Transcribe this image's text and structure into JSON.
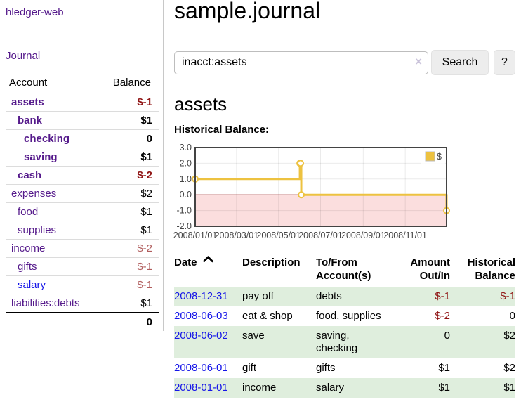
{
  "sidebar": {
    "app_title": "hledger-web",
    "journal_link": "Journal",
    "accounts_header": {
      "account": "Account",
      "balance": "Balance"
    },
    "accounts": [
      {
        "name": "assets",
        "level": 1,
        "bold": true,
        "balance": "$-1",
        "balance_style": "neg-strong",
        "link": "purple"
      },
      {
        "name": "bank",
        "level": 2,
        "bold": true,
        "balance": "$1",
        "balance_style": "pos",
        "link": "purple"
      },
      {
        "name": "checking",
        "level": 3,
        "bold": true,
        "balance": "0",
        "balance_style": "pos",
        "link": "purple"
      },
      {
        "name": "saving",
        "level": 3,
        "bold": true,
        "balance": "$1",
        "balance_style": "pos",
        "link": "purple"
      },
      {
        "name": "cash",
        "level": 2,
        "bold": true,
        "balance": "$-2",
        "balance_style": "neg-strong",
        "link": "purple"
      },
      {
        "name": "expenses",
        "level": 1,
        "bold": false,
        "balance": "$2",
        "balance_style": "pos",
        "link": "purple"
      },
      {
        "name": "food",
        "level": 2,
        "bold": false,
        "balance": "$1",
        "balance_style": "pos",
        "link": "purple"
      },
      {
        "name": "supplies",
        "level": 2,
        "bold": false,
        "balance": "$1",
        "balance_style": "pos",
        "link": "purple"
      },
      {
        "name": "income",
        "level": 1,
        "bold": false,
        "balance": "$-2",
        "balance_style": "neg-soft",
        "link": "purple"
      },
      {
        "name": "gifts",
        "level": 2,
        "bold": false,
        "balance": "$-1",
        "balance_style": "neg-soft",
        "link": "purple"
      },
      {
        "name": "salary",
        "level": 2,
        "bold": false,
        "balance": "$-1",
        "balance_style": "neg-soft",
        "link": "blue"
      },
      {
        "name": "liabilities:debts",
        "level": 1,
        "bold": false,
        "balance": "$1",
        "balance_style": "pos",
        "link": "purple"
      }
    ],
    "total": "0"
  },
  "main": {
    "title": "sample.journal",
    "search": {
      "value": "inacct:assets",
      "clear_icon": "×",
      "button_label": "Search",
      "help_label": "?"
    },
    "account_heading": "assets",
    "chart_label": "Historical Balance:"
  },
  "chart_data": {
    "type": "line",
    "step": true,
    "title": "Historical Balance",
    "legend": [
      {
        "label": "$",
        "color": "#edc240"
      }
    ],
    "legend_position": "top-right",
    "grid": true,
    "x_range": [
      "2008-01-01",
      "2008-12-31"
    ],
    "ylim": [
      -2,
      3
    ],
    "y_ticks": [
      "3.0",
      "2.0",
      "1.0",
      "0.0",
      "-1.0",
      "-2.0"
    ],
    "x_tick_labels": [
      "2008/01/01",
      "2008/03/01",
      "2008/05/01",
      "2008/07/01",
      "2008/09/01",
      "2008/11/01"
    ],
    "series": [
      {
        "name": "$",
        "color": "#edc240",
        "points": [
          {
            "date": "2008-01-01",
            "value": 1
          },
          {
            "date": "2008-06-01",
            "value": 2
          },
          {
            "date": "2008-06-02",
            "value": 2
          },
          {
            "date": "2008-06-03",
            "value": 0
          },
          {
            "date": "2008-12-31",
            "value": -1
          }
        ]
      }
    ],
    "negative_region_color": "#fbdede",
    "zero_line_color": "#8b0000",
    "border_color": "#434343"
  },
  "register": {
    "headers": {
      "date": "Date",
      "description": "Description",
      "accounts": "To/From Account(s)",
      "amount": "Amount Out/In",
      "balance": "Historical Balance"
    },
    "rows": [
      {
        "date": "2008-12-31",
        "description": "pay off",
        "accounts": "debts",
        "amount": "$-1",
        "amount_negative": true,
        "balance": "$-1",
        "balance_negative": true
      },
      {
        "date": "2008-06-03",
        "description": "eat & shop",
        "accounts": "food, supplies",
        "amount": "$-2",
        "amount_negative": true,
        "balance": "0",
        "balance_negative": false
      },
      {
        "date": "2008-06-02",
        "description": "save",
        "accounts": "saving,\nchecking",
        "amount": "0",
        "amount_negative": false,
        "balance": "$2",
        "balance_negative": false
      },
      {
        "date": "2008-06-01",
        "description": "gift",
        "accounts": "gifts",
        "amount": "$1",
        "amount_negative": false,
        "balance": "$2",
        "balance_negative": false
      },
      {
        "date": "2008-01-01",
        "description": "income",
        "accounts": "salary",
        "amount": "$1",
        "amount_negative": false,
        "balance": "$1",
        "balance_negative": false
      }
    ]
  },
  "colors": {
    "link_purple": "#551a8b",
    "link_blue": "#1616e8",
    "negative_strong": "#8f1212",
    "negative_soft": "#b05c5c",
    "row_stripe_green": "#dfeedd",
    "chart_line": "#edc240"
  }
}
